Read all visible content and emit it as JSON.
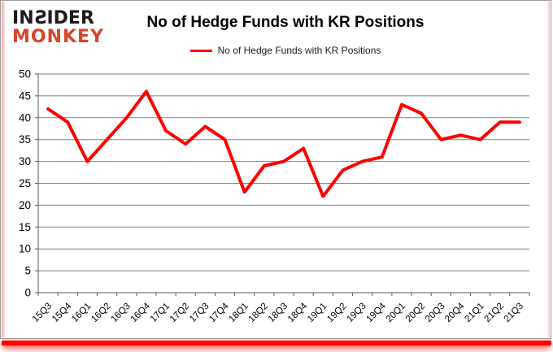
{
  "logo": {
    "line1": "INSIDER",
    "line2": "MONKEY",
    "color_line1": "#1d1a1b",
    "color_line2": "#d6452c"
  },
  "header": {
    "title": "No of Hedge Funds with KR Positions"
  },
  "legend": {
    "label": "No of Hedge Funds with KR Positions",
    "swatch_color": "#fd0000"
  },
  "chart_data": {
    "type": "line",
    "title": "No of Hedge Funds with KR Positions",
    "categories": [
      "15Q3",
      "15Q4",
      "16Q1",
      "16Q2",
      "16Q3",
      "16Q4",
      "17Q1",
      "17Q2",
      "17Q3",
      "17Q4",
      "18Q1",
      "18Q2",
      "18Q3",
      "18Q4",
      "19Q1",
      "19Q2",
      "19Q3",
      "19Q4",
      "20Q1",
      "20Q2",
      "20Q3",
      "20Q4",
      "21Q1",
      "21Q2",
      "21Q3"
    ],
    "values": [
      42,
      39,
      30,
      35,
      40,
      46,
      37,
      34,
      38,
      35,
      23,
      29,
      30,
      33,
      22,
      28,
      30,
      31,
      43,
      41,
      35,
      36,
      35,
      39,
      39
    ],
    "xlabel": "",
    "ylabel": "",
    "ylim": [
      0,
      50
    ],
    "ytick_step": 5,
    "yticks": [
      0,
      5,
      10,
      15,
      20,
      25,
      30,
      35,
      40,
      45,
      50
    ],
    "grid": true,
    "legend_position": "top-center",
    "line_color": "#fd0000",
    "line_width": 4,
    "gridline_color": "#808080",
    "axis_color": "#595959",
    "tick_label_color": "#000000",
    "accent_bottom_color": "#fd0000"
  }
}
